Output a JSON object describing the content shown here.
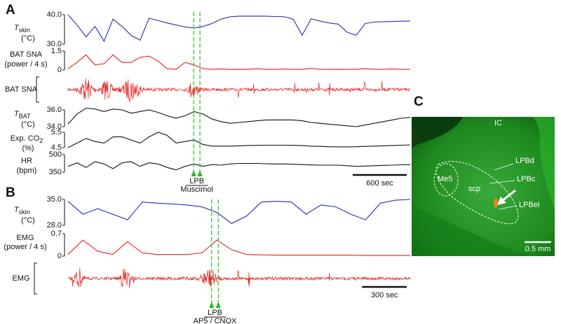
{
  "panel_labels": [
    "A",
    "B",
    "C"
  ],
  "chart_data": [
    {
      "type": "line",
      "label": {
        "main": "T",
        "sub": "skin",
        "unit": "(°C)"
      },
      "color": "#2a2ab8",
      "x": [
        0,
        100,
        200,
        300,
        400,
        500,
        600,
        700,
        800,
        900,
        1000,
        1100,
        1200,
        1300,
        1400,
        1500,
        1600,
        1700,
        1800,
        1900,
        2000,
        2100,
        2200,
        2300,
        2400,
        2500,
        2600,
        2700,
        2800,
        2900,
        3000,
        3100,
        3200,
        3300,
        3400,
        3500,
        3600,
        3700,
        3800
      ],
      "xlim": [
        0,
        3800
      ],
      "ylim": [
        30,
        40
      ],
      "yticks": [
        {
          "value": 40,
          "label": "40.0"
        },
        {
          "value": 30,
          "label": "30.0"
        }
      ],
      "values": [
        40,
        36.5,
        32.5,
        36,
        31,
        38.5,
        36,
        33,
        31.3,
        38.8,
        38,
        37.2,
        36.5,
        35.8,
        35.5,
        36,
        37,
        38.5,
        39.3,
        39.5,
        39.5,
        39.5,
        39.5,
        39.4,
        39.3,
        38.5,
        33,
        38.6,
        37.8,
        37.2,
        36.8,
        34,
        33,
        37,
        37.5,
        37.6,
        37.7,
        37.8,
        37.8
      ]
    },
    {
      "type": "line",
      "label": {
        "main": "BAT SNA",
        "unit": "(power / 4 s)"
      },
      "color": "#e8201c",
      "x": [
        0,
        100,
        200,
        300,
        400,
        500,
        600,
        700,
        800,
        900,
        1000,
        1100,
        1200,
        1300,
        1400,
        1500,
        1600,
        1700,
        1800,
        1900,
        2000,
        2100,
        2200,
        2300,
        2400,
        2500,
        2600,
        2700,
        2800,
        2900,
        3000,
        3100,
        3200,
        3300,
        3400,
        3500,
        3600,
        3700,
        3800
      ],
      "xlim": [
        0,
        3800
      ],
      "ylim": [
        0,
        1.5
      ],
      "yticks": [
        1.5,
        0
      ],
      "values": [
        0.1,
        0.6,
        1.2,
        0.4,
        0.5,
        1.2,
        0.6,
        0.6,
        1.0,
        1.1,
        0.7,
        0.1,
        0.05,
        0.6,
        0.4,
        0.1,
        0.05,
        0.08,
        0.05,
        0.06,
        0.05,
        0.1,
        0.05,
        0.05,
        0.07,
        0.05,
        0.05,
        0.12,
        0.05,
        0.05,
        0.06,
        0.05,
        0.05,
        0.1,
        0.05,
        0.05,
        0.08,
        0.05,
        0.05
      ]
    },
    {
      "type": "line",
      "label": {
        "main": "T",
        "sub": "BAT",
        "unit": "(°C)"
      },
      "color": "#111111",
      "x": [
        0,
        100,
        200,
        300,
        400,
        500,
        600,
        700,
        800,
        900,
        1000,
        1100,
        1200,
        1300,
        1400,
        1500,
        1600,
        1700,
        1800,
        1900,
        2000,
        2100,
        2200,
        2300,
        2400,
        2500,
        2600,
        2700,
        2800,
        2900,
        3000,
        3100,
        3200,
        3300,
        3400,
        3500,
        3600,
        3700,
        3800
      ],
      "xlim": [
        0,
        3800
      ],
      "ylim": [
        33.5,
        36.5
      ],
      "yticks": [
        {
          "value": 36,
          "label": "36.0"
        },
        {
          "value": 34,
          "label": "34.0"
        }
      ],
      "values": [
        34.3,
        35.5,
        36.2,
        36.1,
        35.8,
        36.1,
        36,
        35.6,
        35.8,
        36,
        35.7,
        35.3,
        35,
        35.3,
        35.8,
        35.5,
        34.9,
        34.6,
        34.4,
        34.5,
        34.6,
        34.7,
        34.8,
        34.8,
        34.8,
        34.8,
        34.7,
        34.5,
        34.4,
        34.3,
        34.2,
        34.1,
        34,
        34.2,
        34.4,
        34.6,
        34.8,
        35,
        35.1
      ]
    },
    {
      "type": "line",
      "label": {
        "main": "Exp. CO",
        "sub": "2",
        "unit": "(%)"
      },
      "color": "#111111",
      "x": [
        0,
        100,
        200,
        300,
        400,
        500,
        600,
        700,
        800,
        900,
        1000,
        1100,
        1200,
        1300,
        1400,
        1500,
        1600,
        1700,
        1800,
        1900,
        2000,
        2100,
        2200,
        2300,
        2400,
        2500,
        2600,
        2700,
        2800,
        2900,
        3000,
        3100,
        3200,
        3300,
        3400,
        3500,
        3600,
        3700,
        3800
      ],
      "xlim": [
        0,
        3800
      ],
      "ylim": [
        4.4,
        5.6
      ],
      "yticks": [
        5.5,
        4.5
      ],
      "values": [
        4.5,
        4.8,
        5.1,
        4.9,
        4.8,
        5.2,
        5.2,
        5.0,
        4.8,
        5.2,
        5.5,
        5.3,
        4.8,
        4.9,
        5.0,
        4.7,
        4.6,
        4.6,
        4.6,
        4.62,
        4.64,
        4.65,
        4.66,
        4.66,
        4.66,
        4.65,
        4.63,
        4.6,
        4.58,
        4.56,
        4.55,
        4.55,
        4.56,
        4.58,
        4.6,
        4.62,
        4.64,
        4.66,
        4.68
      ]
    },
    {
      "type": "line",
      "label": {
        "main": "HR",
        "unit": "(bpm)"
      },
      "color": "#111111",
      "x": [
        0,
        100,
        200,
        300,
        400,
        500,
        600,
        700,
        800,
        900,
        1000,
        1100,
        1200,
        1300,
        1400,
        1500,
        1600,
        1700,
        1800,
        1900,
        2000,
        2100,
        2200,
        2300,
        2400,
        2500,
        2600,
        2700,
        2800,
        2900,
        3000,
        3100,
        3200,
        3300,
        3400,
        3500,
        3600,
        3700,
        3800
      ],
      "xlim": [
        0,
        3800
      ],
      "ylim": [
        340,
        510
      ],
      "yticks": [
        500,
        350
      ],
      "values": [
        400,
        430,
        390,
        440,
        420,
        380,
        430,
        440,
        400,
        430,
        420,
        390,
        370,
        400,
        420,
        400,
        415,
        410,
        420,
        425,
        425,
        425,
        422,
        420,
        420,
        418,
        415,
        412,
        410,
        410,
        410,
        405,
        400,
        402,
        405,
        408,
        410,
        413,
        415
      ],
      "scale_bar": {
        "value": 600,
        "label": "600 sec"
      },
      "events": {
        "x": [
          1395,
          1465
        ],
        "labels": [
          "LPB",
          "Muscimol"
        ]
      }
    },
    {
      "type": "line",
      "label": {
        "main": "T",
        "sub": "skin",
        "unit": "(°C)"
      },
      "color": "#2a2ab8",
      "x": [
        0,
        100,
        200,
        300,
        400,
        500,
        600,
        700,
        800,
        900,
        1000,
        1100,
        1200,
        1300,
        1400,
        1500,
        1600,
        1700,
        1800,
        1900,
        2000,
        2100,
        2200,
        2300
      ],
      "xlim": [
        0,
        2300
      ],
      "ylim": [
        27.5,
        35.5
      ],
      "yticks": [
        {
          "value": 35,
          "label": "35.0"
        },
        {
          "value": 28,
          "label": "28.0"
        }
      ],
      "values": [
        34.5,
        31,
        32.5,
        31,
        29.5,
        34.3,
        34,
        33.8,
        33.5,
        33,
        31.5,
        28.5,
        30.5,
        34.3,
        34.5,
        34.3,
        31,
        33.5,
        33,
        31,
        29.5,
        34,
        34.8,
        35
      ]
    },
    {
      "type": "line",
      "label": {
        "main": "EMG",
        "unit": "(power / 4 s)"
      },
      "color": "#e8201c",
      "x": [
        0,
        100,
        200,
        300,
        400,
        500,
        600,
        700,
        800,
        900,
        1000,
        1100,
        1200,
        1300,
        1400,
        1500,
        1600,
        1700,
        1800,
        1900,
        2000,
        2100,
        2200,
        2300
      ],
      "xlim": [
        0,
        2300
      ],
      "ylim": [
        0,
        0.7
      ],
      "yticks": [
        0.7,
        0
      ],
      "values": [
        0.05,
        0.5,
        0.15,
        0.05,
        0.45,
        0.1,
        0.05,
        0.05,
        0.05,
        0.1,
        0.5,
        0.2,
        0.05,
        0.04,
        0.03,
        0.03,
        0.03,
        0.03,
        0.03,
        0.03,
        0.02,
        0.02,
        0.02,
        0.02
      ],
      "scale_bar": {
        "value": 300,
        "label": "300 sec"
      },
      "events": {
        "x": [
          965,
          1010
        ],
        "labels": [
          "LPB",
          "AP5 / CNQX"
        ]
      }
    }
  ],
  "raw_traces": [
    "BAT SNA",
    "EMG"
  ],
  "histology": {
    "labels": [
      "IC",
      "LPBd",
      "LPBc",
      "LPBel",
      "Me5",
      "scp"
    ],
    "scale": "0.5 mm"
  }
}
